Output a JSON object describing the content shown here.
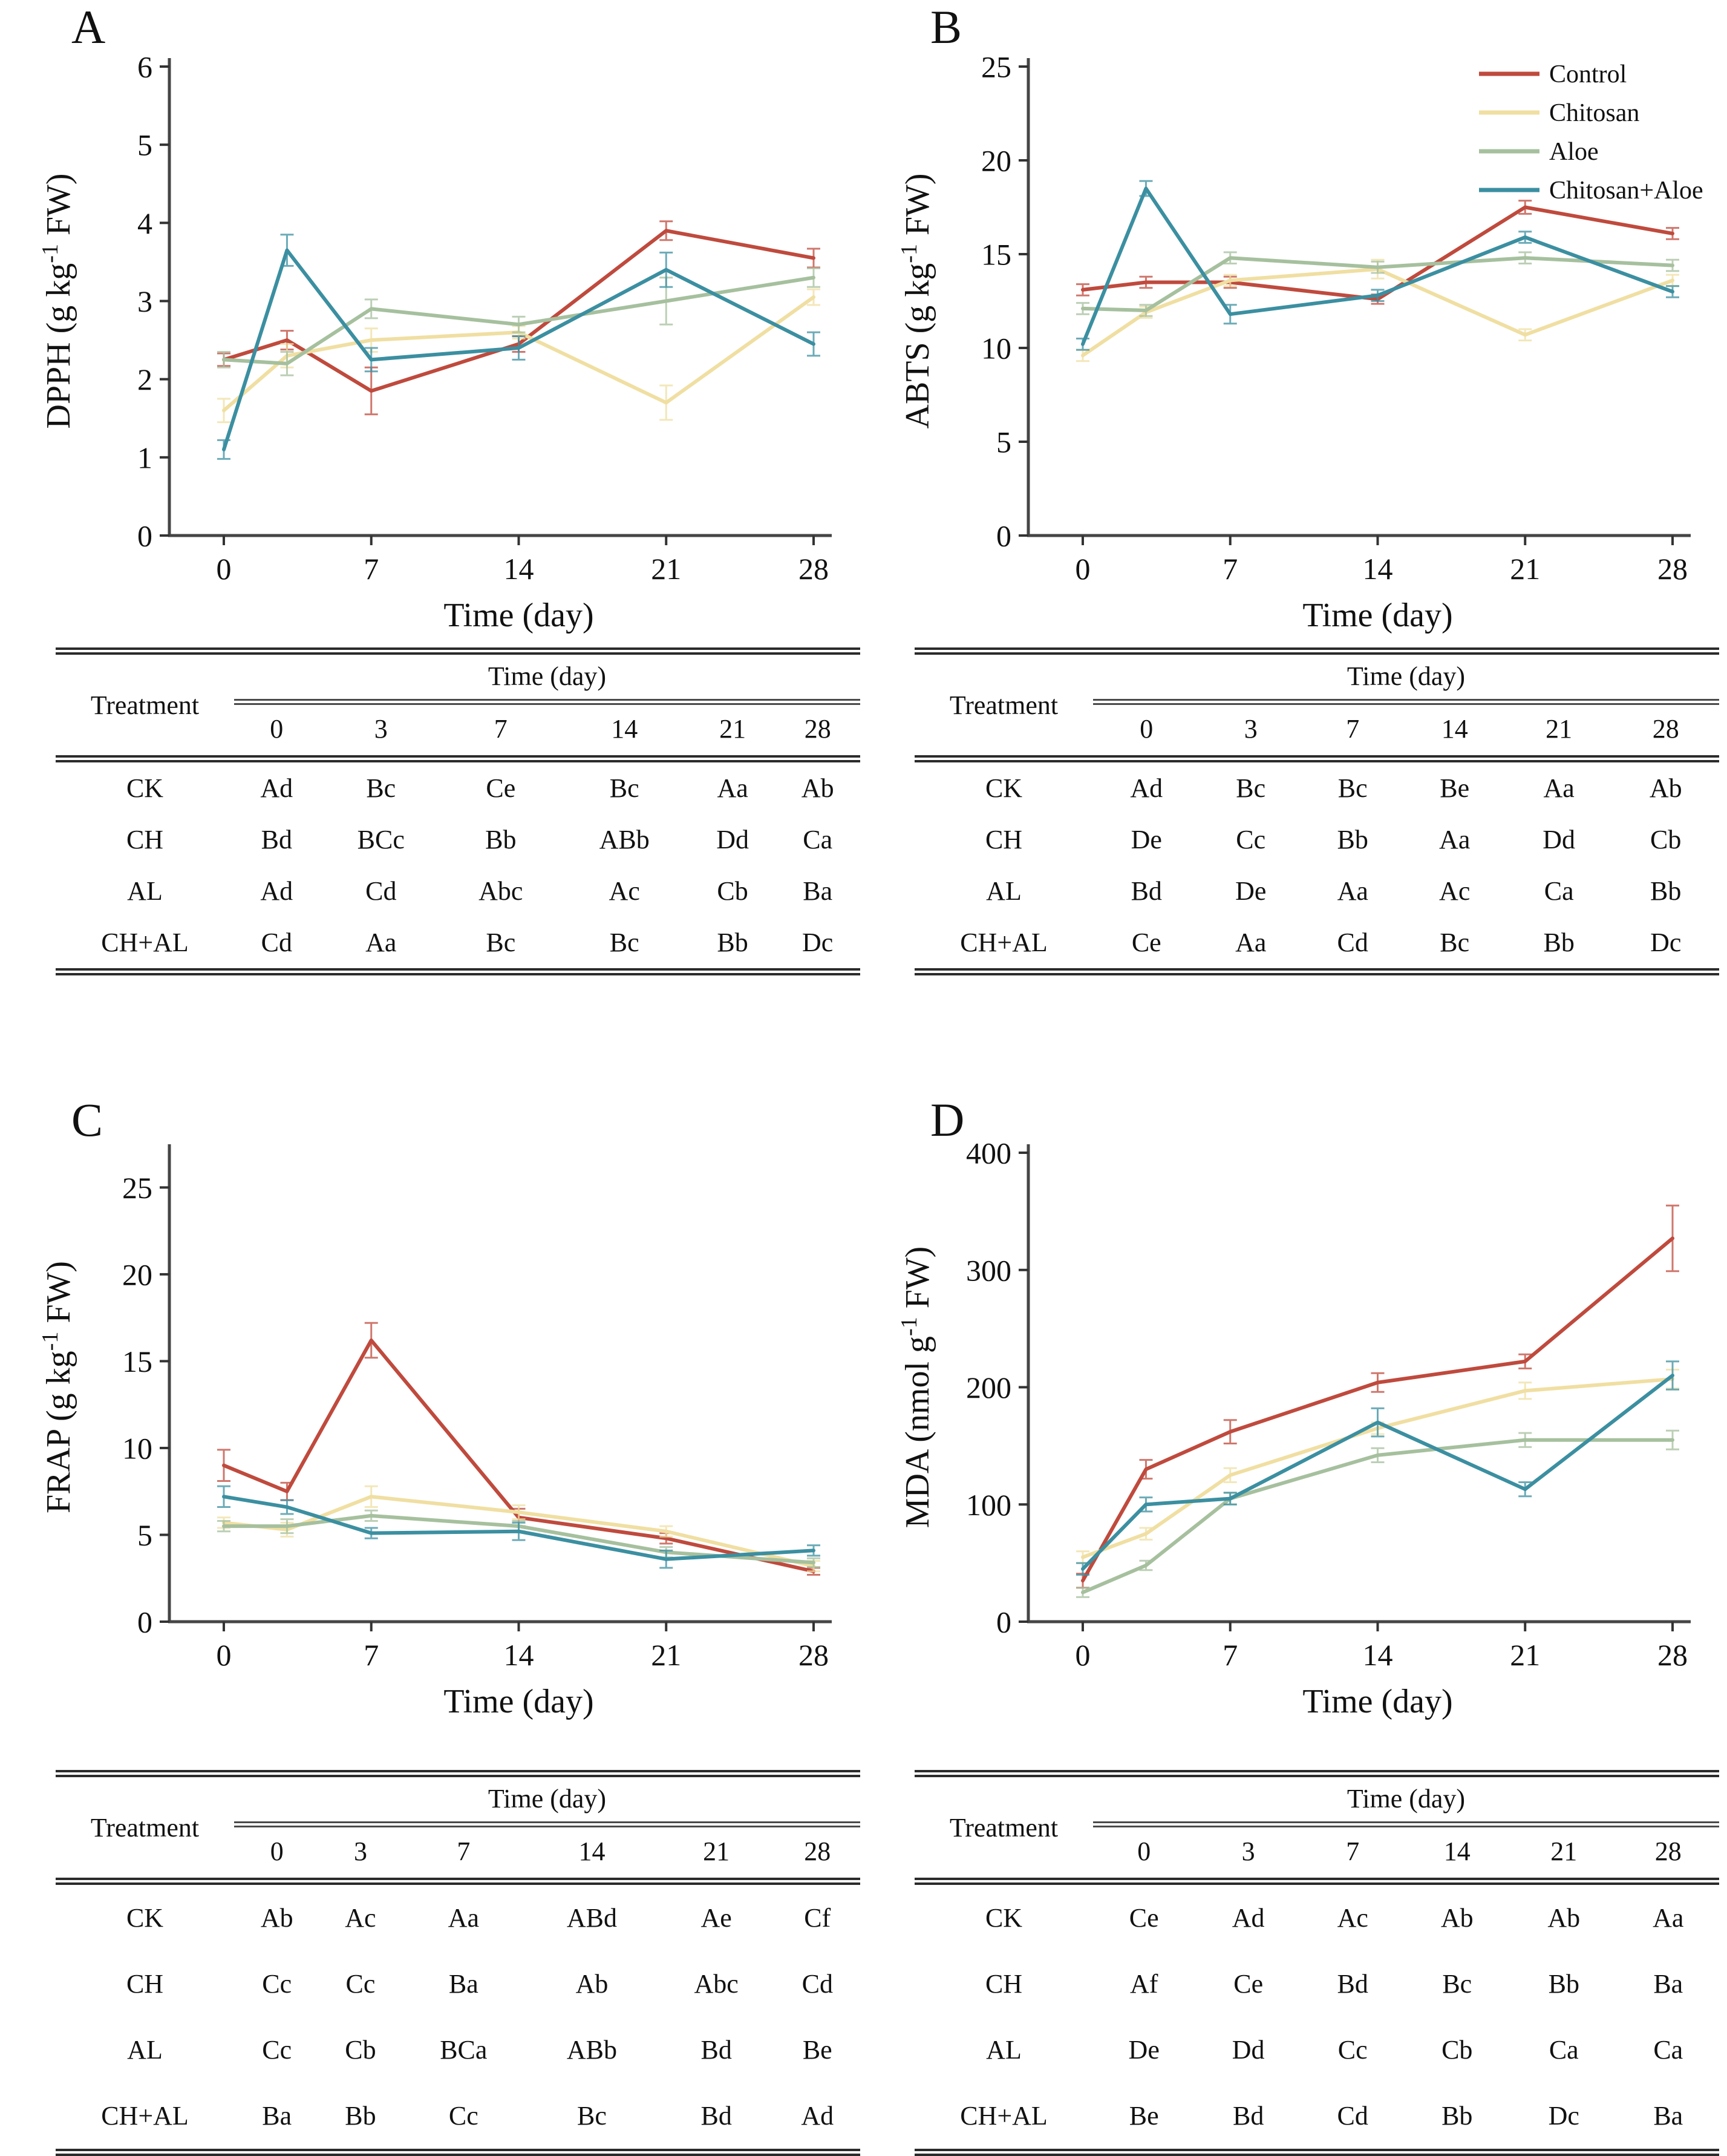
{
  "panels": [
    {
      "label": "A",
      "table": {
        "corner_label": "Treatment",
        "group_header": "Time (day)",
        "columns": [
          "0",
          "3",
          "7",
          "14",
          "21",
          "28"
        ],
        "rows": [
          {
            "treatment": "CK",
            "cells": [
              "Ad",
              "Bc",
              "Ce",
              "Bc",
              "Aa",
              "Ab"
            ]
          },
          {
            "treatment": "CH",
            "cells": [
              "Bd",
              "BCc",
              "Bb",
              "ABb",
              "Dd",
              "Ca"
            ]
          },
          {
            "treatment": "AL",
            "cells": [
              "Ad",
              "Cd",
              "Abc",
              "Ac",
              "Cb",
              "Ba"
            ]
          },
          {
            "treatment": "CH+AL",
            "cells": [
              "Cd",
              "Aa",
              "Bc",
              "Bc",
              "Bb",
              "Dc"
            ]
          }
        ]
      }
    },
    {
      "label": "B",
      "table": {
        "corner_label": "Treatment",
        "group_header": "Time (day)",
        "columns": [
          "0",
          "3",
          "7",
          "14",
          "21",
          "28"
        ],
        "rows": [
          {
            "treatment": "CK",
            "cells": [
              "Ad",
              "Bc",
              "Bc",
              "Be",
              "Aa",
              "Ab"
            ]
          },
          {
            "treatment": "CH",
            "cells": [
              "De",
              "Cc",
              "Bb",
              "Aa",
              "Dd",
              "Cb"
            ]
          },
          {
            "treatment": "AL",
            "cells": [
              "Bd",
              "De",
              "Aa",
              "Ac",
              "Ca",
              "Bb"
            ]
          },
          {
            "treatment": "CH+AL",
            "cells": [
              "Ce",
              "Aa",
              "Cd",
              "Bc",
              "Bb",
              "Dc"
            ]
          }
        ]
      }
    },
    {
      "label": "C",
      "table": {
        "corner_label": "Treatment",
        "group_header": "Time (day)",
        "columns": [
          "0",
          "3",
          "7",
          "14",
          "21",
          "28"
        ],
        "rows": [
          {
            "treatment": "CK",
            "cells": [
              "Ab",
              "Ac",
              "Aa",
              "ABd",
              "Ae",
              "Cf"
            ]
          },
          {
            "treatment": "CH",
            "cells": [
              "Cc",
              "Cc",
              "Ba",
              "Ab",
              "Abc",
              "Cd"
            ]
          },
          {
            "treatment": "AL",
            "cells": [
              "Cc",
              "Cb",
              "BCa",
              "ABb",
              "Bd",
              "Be"
            ]
          },
          {
            "treatment": "CH+AL",
            "cells": [
              "Ba",
              "Bb",
              "Cc",
              "Bc",
              "Bd",
              "Ad"
            ]
          }
        ]
      }
    },
    {
      "label": "D",
      "table": {
        "corner_label": "Treatment",
        "group_header": "Time (day)",
        "columns": [
          "0",
          "3",
          "7",
          "14",
          "21",
          "28"
        ],
        "rows": [
          {
            "treatment": "CK",
            "cells": [
              "Ce",
              "Ad",
              "Ac",
              "Ab",
              "Ab",
              "Aa"
            ]
          },
          {
            "treatment": "CH",
            "cells": [
              "Af",
              "Ce",
              "Bd",
              "Bc",
              "Bb",
              "Ba"
            ]
          },
          {
            "treatment": "AL",
            "cells": [
              "De",
              "Dd",
              "Cc",
              "Cb",
              "Ca",
              "Ca"
            ]
          },
          {
            "treatment": "CH+AL",
            "cells": [
              "Be",
              "Bd",
              "Cd",
              "Bb",
              "Dc",
              "Ba"
            ]
          }
        ]
      }
    }
  ],
  "colors": {
    "control": "#bf4a3d",
    "chitosan": "#f0dfa2",
    "aloe": "#a6c09e",
    "chitosan_aloe": "#3b8fa1",
    "axis": "#454545",
    "text": "#111111"
  },
  "legend": {
    "position": "top-right-of-panel-B",
    "items": [
      {
        "label": "Control",
        "color": "#bf4a3d"
      },
      {
        "label": "Chitosan",
        "color": "#f0dfa2"
      },
      {
        "label": "Aloe",
        "color": "#a6c09e"
      },
      {
        "label": "Chitosan+Aloe",
        "color": "#3b8fa1"
      }
    ]
  },
  "chart_data": [
    {
      "type": "line",
      "panel": "A",
      "x": [
        0,
        3,
        7,
        14,
        21,
        28
      ],
      "xticks": [
        0,
        7,
        14,
        21,
        28
      ],
      "xlabel": "Time (day)",
      "ylabel": "DPPH (g kg⁻¹ FW)",
      "ylim": [
        0,
        6
      ],
      "yticks": [
        0,
        1,
        2,
        3,
        4,
        5,
        6
      ],
      "grid": false,
      "legend": false,
      "series": [
        {
          "name": "Control",
          "color": "#bf4a3d",
          "values": [
            2.25,
            2.5,
            1.85,
            2.45,
            3.9,
            3.55
          ],
          "errors": [
            0.08,
            0.12,
            0.3,
            0.1,
            0.12,
            0.12
          ]
        },
        {
          "name": "Chitosan",
          "color": "#f0dfa2",
          "values": [
            1.6,
            2.3,
            2.5,
            2.6,
            1.7,
            3.05
          ],
          "errors": [
            0.15,
            0.15,
            0.15,
            0.08,
            0.22,
            0.1
          ]
        },
        {
          "name": "Aloe",
          "color": "#a6c09e",
          "values": [
            2.25,
            2.2,
            2.9,
            2.7,
            3.0,
            3.3
          ],
          "errors": [
            0.1,
            0.15,
            0.12,
            0.1,
            0.3,
            0.12
          ]
        },
        {
          "name": "Chitosan+Aloe",
          "color": "#3b8fa1",
          "values": [
            1.1,
            3.65,
            2.25,
            2.4,
            3.4,
            2.45
          ],
          "errors": [
            0.12,
            0.2,
            0.15,
            0.15,
            0.22,
            0.15
          ]
        }
      ]
    },
    {
      "type": "line",
      "panel": "B",
      "x": [
        0,
        3,
        7,
        14,
        21,
        28
      ],
      "xticks": [
        0,
        7,
        14,
        21,
        28
      ],
      "xlabel": "Time (day)",
      "ylabel": "ABTS (g kg⁻¹ FW)",
      "ylim": [
        0,
        25
      ],
      "yticks": [
        0,
        5,
        10,
        15,
        20,
        25
      ],
      "grid": false,
      "legend": true,
      "series": [
        {
          "name": "Control",
          "color": "#bf4a3d",
          "values": [
            13.1,
            13.5,
            13.5,
            12.6,
            17.5,
            16.1
          ],
          "errors": [
            0.3,
            0.3,
            0.3,
            0.25,
            0.35,
            0.3
          ]
        },
        {
          "name": "Chitosan",
          "color": "#f0dfa2",
          "values": [
            9.6,
            11.9,
            13.6,
            14.2,
            10.7,
            13.6
          ],
          "errors": [
            0.3,
            0.3,
            0.3,
            0.5,
            0.3,
            0.3
          ]
        },
        {
          "name": "Aloe",
          "color": "#a6c09e",
          "values": [
            12.1,
            12.0,
            14.8,
            14.3,
            14.8,
            14.4
          ],
          "errors": [
            0.3,
            0.3,
            0.3,
            0.3,
            0.3,
            0.3
          ]
        },
        {
          "name": "Chitosan+Aloe",
          "color": "#3b8fa1",
          "values": [
            10.2,
            18.5,
            11.8,
            12.8,
            15.9,
            13.0
          ],
          "errors": [
            0.3,
            0.4,
            0.5,
            0.3,
            0.3,
            0.3
          ]
        }
      ]
    },
    {
      "type": "line",
      "panel": "C",
      "x": [
        0,
        3,
        7,
        14,
        21,
        28
      ],
      "xticks": [
        0,
        7,
        14,
        21,
        28
      ],
      "xlabel": "Time (day)",
      "ylabel": "FRAP (g kg⁻¹ FW)",
      "ylim": [
        0,
        27
      ],
      "yticks": [
        0,
        5,
        10,
        15,
        20,
        25
      ],
      "grid": false,
      "legend": false,
      "series": [
        {
          "name": "Control",
          "color": "#bf4a3d",
          "values": [
            9.0,
            7.5,
            16.2,
            6.0,
            4.8,
            2.9
          ],
          "errors": [
            0.9,
            0.5,
            1.0,
            0.5,
            0.3,
            0.2
          ]
        },
        {
          "name": "Chitosan",
          "color": "#f0dfa2",
          "values": [
            5.7,
            5.3,
            7.2,
            6.3,
            5.2,
            3.2
          ],
          "errors": [
            0.3,
            0.4,
            0.6,
            0.4,
            0.3,
            0.3
          ]
        },
        {
          "name": "Aloe",
          "color": "#a6c09e",
          "values": [
            5.5,
            5.5,
            6.1,
            5.5,
            4.0,
            3.4
          ],
          "errors": [
            0.3,
            0.4,
            0.3,
            0.3,
            0.3,
            0.25
          ]
        },
        {
          "name": "Chitosan+Aloe",
          "color": "#3b8fa1",
          "values": [
            7.2,
            6.6,
            5.1,
            5.2,
            3.6,
            4.1
          ],
          "errors": [
            0.6,
            0.4,
            0.3,
            0.5,
            0.5,
            0.3
          ]
        }
      ]
    },
    {
      "type": "line",
      "panel": "D",
      "x": [
        0,
        3,
        7,
        14,
        21,
        28
      ],
      "xticks": [
        0,
        7,
        14,
        21,
        28
      ],
      "xlabel": "Time (day)",
      "ylabel": "MDA (nmol g⁻¹ FW)",
      "ylim": [
        0,
        400
      ],
      "yticks": [
        0,
        100,
        200,
        300,
        400
      ],
      "grid": false,
      "legend": false,
      "series": [
        {
          "name": "Control",
          "color": "#bf4a3d",
          "values": [
            35,
            130,
            162,
            204,
            222,
            327
          ],
          "errors": [
            6,
            8,
            10,
            8,
            6,
            28
          ]
        },
        {
          "name": "Chitosan",
          "color": "#f0dfa2",
          "values": [
            55,
            75,
            125,
            165,
            197,
            207
          ],
          "errors": [
            5,
            5,
            6,
            5,
            7,
            8
          ]
        },
        {
          "name": "Aloe",
          "color": "#a6c09e",
          "values": [
            25,
            48,
            105,
            142,
            155,
            155
          ],
          "errors": [
            4,
            4,
            5,
            6,
            6,
            8
          ]
        },
        {
          "name": "Chitosan+Aloe",
          "color": "#3b8fa1",
          "values": [
            45,
            100,
            105,
            170,
            113,
            210
          ],
          "errors": [
            5,
            6,
            5,
            12,
            6,
            12
          ]
        }
      ]
    }
  ]
}
